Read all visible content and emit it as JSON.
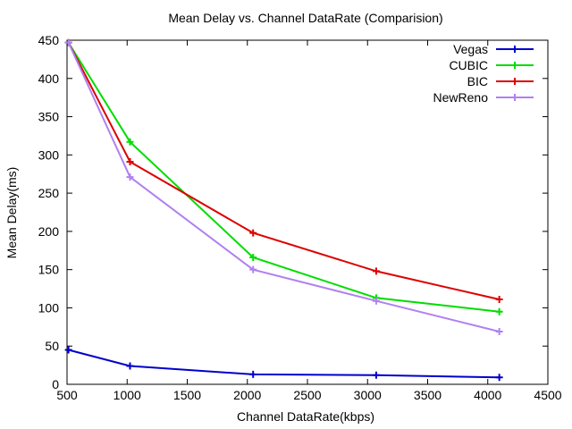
{
  "chart_data": {
    "type": "line",
    "title": "Mean Delay vs. Channel DataRate (Comparision)",
    "xlabel": "Channel DataRate(kbps)",
    "ylabel": "Mean Delay(ms)",
    "xlim": [
      500,
      4500
    ],
    "ylim": [
      0,
      450
    ],
    "xticks": [
      500,
      1000,
      1500,
      2000,
      2500,
      3000,
      3500,
      4000,
      4500
    ],
    "yticks": [
      0,
      50,
      100,
      150,
      200,
      250,
      300,
      350,
      400,
      450
    ],
    "grid": false,
    "legend_position": "top-right",
    "x": [
      512,
      1024,
      2048,
      3072,
      4096
    ],
    "series": [
      {
        "name": "Vegas",
        "color": "#0000cc",
        "values": [
          45,
          24,
          13,
          12,
          9
        ]
      },
      {
        "name": "CUBIC",
        "color": "#00dd00",
        "values": [
          447,
          317,
          166,
          113,
          95
        ]
      },
      {
        "name": "BIC",
        "color": "#dd0000",
        "values": [
          447,
          291,
          198,
          148,
          111
        ]
      },
      {
        "name": "NewReno",
        "color": "#b080f0",
        "values": [
          447,
          271,
          150,
          109,
          69
        ]
      }
    ]
  }
}
